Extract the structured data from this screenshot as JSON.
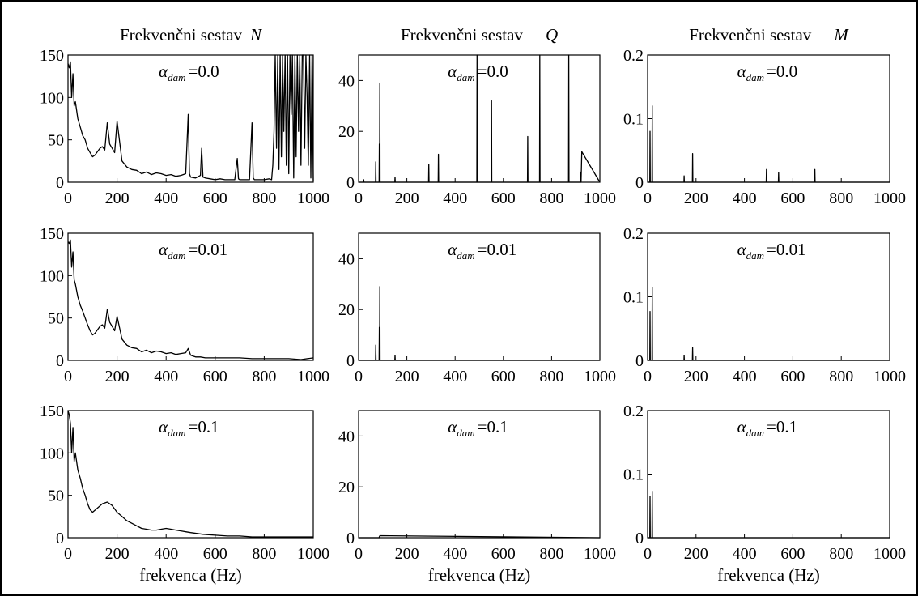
{
  "chart_data": [
    {
      "id": "N-0",
      "type": "line",
      "title": {
        "text": "Frekvenčni sestav",
        "symbol": "N"
      },
      "annotation": {
        "symbol": "α",
        "subscript": "dam",
        "value": "=0.0"
      },
      "xlabel": "",
      "xlim": [
        0,
        1000
      ],
      "ylim": [
        0,
        150
      ],
      "xticks": [
        "0",
        "200",
        "400",
        "600",
        "800",
        "1000"
      ],
      "yticks": [
        "0",
        "50",
        "100",
        "150"
      ],
      "series": [
        {
          "x": [
            0,
            5,
            10,
            15,
            20,
            25,
            30,
            40,
            50,
            60,
            70,
            80,
            90,
            100,
            110,
            120,
            130,
            140,
            150,
            160,
            170,
            180,
            190,
            200,
            220,
            240,
            260,
            280,
            300,
            320,
            340,
            360,
            380,
            400,
            420,
            440,
            460,
            480,
            490,
            495,
            500,
            520,
            540,
            545,
            550,
            560,
            580,
            600,
            620,
            640,
            660,
            680,
            690,
            695,
            700,
            720,
            740,
            750,
            755,
            760,
            780,
            800,
            820,
            830,
            835,
            840,
            845,
            850,
            855,
            860,
            865,
            870,
            875,
            880,
            885,
            890,
            895,
            900,
            905,
            910,
            915,
            920,
            925,
            930,
            935,
            940,
            945,
            950,
            955,
            960,
            965,
            970,
            975,
            980,
            985,
            990,
            995,
            1000
          ],
          "y": [
            140,
            135,
            142,
            100,
            128,
            90,
            95,
            75,
            65,
            55,
            50,
            40,
            35,
            30,
            32,
            36,
            40,
            42,
            38,
            70,
            45,
            40,
            35,
            72,
            25,
            18,
            15,
            14,
            10,
            12,
            9,
            11,
            10,
            8,
            9,
            7,
            8,
            10,
            80,
            10,
            6,
            5,
            8,
            40,
            6,
            5,
            4,
            3,
            4,
            3,
            3,
            3,
            28,
            4,
            3,
            3,
            3,
            70,
            5,
            3,
            3,
            3,
            4,
            3,
            20,
            60,
            150,
            40,
            150,
            15,
            150,
            30,
            150,
            60,
            150,
            20,
            150,
            10,
            150,
            80,
            150,
            5,
            150,
            30,
            150,
            60,
            150,
            20,
            150,
            150,
            40,
            150,
            100,
            20,
            150,
            5,
            150,
            2
          ]
        }
      ]
    },
    {
      "id": "Q-0",
      "type": "line",
      "title": {
        "text": "Frekvenčni sestav",
        "symbol": "Q"
      },
      "annotation": {
        "symbol": "α",
        "subscript": "dam",
        "value": "=0.0"
      },
      "xlabel": "",
      "xlim": [
        0,
        1000
      ],
      "ylim": [
        0,
        50
      ],
      "xticks": [
        "0",
        "200",
        "400",
        "600",
        "800",
        "1000"
      ],
      "yticks": [
        "0",
        "20",
        "40"
      ],
      "series": [
        {
          "x": [
            0,
            20,
            21,
            22,
            25,
            70,
            71,
            72,
            85,
            86,
            87,
            88,
            89,
            90,
            150,
            151,
            152,
            290,
            291,
            292,
            330,
            331,
            332,
            490,
            491,
            492,
            550,
            551,
            552,
            700,
            701,
            702,
            750,
            751,
            752,
            870,
            871,
            872,
            920,
            921,
            922,
            925,
            1000
          ],
          "y": [
            0,
            0,
            1,
            0,
            0,
            0,
            8,
            0,
            0,
            15,
            0,
            39,
            0,
            0,
            0,
            2,
            0,
            0,
            7,
            0,
            0,
            11,
            0,
            0,
            50,
            0,
            0,
            32,
            0,
            0,
            18,
            0,
            0,
            50,
            0,
            0,
            50,
            0,
            0,
            4,
            0,
            12,
            0
          ]
        }
      ]
    },
    {
      "id": "M-0",
      "type": "line",
      "title": {
        "text": "Frekvenčni sestav",
        "symbol": "M"
      },
      "annotation": {
        "symbol": "α",
        "subscript": "dam",
        "value": "=0.0"
      },
      "xlabel": "",
      "xlim": [
        0,
        1000
      ],
      "ylim": [
        0,
        0.2
      ],
      "xticks": [
        "0",
        "200",
        "400",
        "600",
        "800",
        "1000"
      ],
      "yticks": [
        "0",
        "0.1",
        "0.2"
      ],
      "series": [
        {
          "x": [
            0,
            9,
            10,
            11,
            18,
            19,
            20,
            30,
            150,
            151,
            152,
            185,
            186,
            187,
            490,
            491,
            492,
            540,
            541,
            542,
            690,
            691,
            692,
            1000
          ],
          "y": [
            0,
            0,
            0.08,
            0,
            0,
            0.12,
            0,
            0,
            0,
            0.01,
            0,
            0,
            0.045,
            0,
            0,
            0.02,
            0,
            0,
            0.015,
            0,
            0,
            0.02,
            0,
            0
          ]
        }
      ]
    },
    {
      "id": "N-1",
      "type": "line",
      "annotation": {
        "symbol": "α",
        "subscript": "dam",
        "value": "=0.01"
      },
      "xlabel": "",
      "xlim": [
        0,
        1000
      ],
      "ylim": [
        0,
        150
      ],
      "xticks": [
        "0",
        "200",
        "400",
        "600",
        "800",
        "1000"
      ],
      "yticks": [
        "0",
        "50",
        "100",
        "150"
      ],
      "series": [
        {
          "x": [
            0,
            5,
            10,
            15,
            20,
            25,
            30,
            40,
            50,
            60,
            70,
            80,
            90,
            100,
            110,
            120,
            130,
            140,
            150,
            160,
            170,
            180,
            190,
            200,
            220,
            240,
            260,
            280,
            300,
            320,
            340,
            360,
            380,
            400,
            420,
            440,
            460,
            480,
            490,
            500,
            510,
            520,
            540,
            560,
            580,
            600,
            650,
            700,
            750,
            800,
            850,
            900,
            950,
            1000
          ],
          "y": [
            140,
            138,
            142,
            110,
            128,
            95,
            90,
            75,
            65,
            58,
            50,
            42,
            35,
            30,
            32,
            36,
            40,
            42,
            38,
            60,
            45,
            40,
            35,
            52,
            25,
            18,
            15,
            14,
            10,
            12,
            9,
            11,
            10,
            8,
            9,
            7,
            8,
            9,
            14,
            6,
            5,
            4,
            4,
            3,
            3,
            3,
            3,
            3,
            2,
            2,
            2,
            2,
            1,
            3
          ]
        }
      ]
    },
    {
      "id": "Q-1",
      "type": "line",
      "annotation": {
        "symbol": "α",
        "subscript": "dam",
        "value": "=0.01"
      },
      "xlabel": "",
      "xlim": [
        0,
        1000
      ],
      "ylim": [
        0,
        50
      ],
      "xticks": [
        "0",
        "200",
        "400",
        "600",
        "800",
        "1000"
      ],
      "yticks": [
        "0",
        "20",
        "40"
      ],
      "series": [
        {
          "x": [
            0,
            70,
            71,
            72,
            85,
            86,
            87,
            88,
            89,
            90,
            150,
            151,
            152,
            1000
          ],
          "y": [
            0,
            0,
            6,
            0,
            0,
            13,
            0,
            29,
            0,
            0,
            0,
            2,
            0,
            0
          ]
        }
      ]
    },
    {
      "id": "M-1",
      "type": "line",
      "annotation": {
        "symbol": "α",
        "subscript": "dam",
        "value": "=0.01"
      },
      "xlabel": "",
      "xlim": [
        0,
        1000
      ],
      "ylim": [
        0,
        0.2
      ],
      "xticks": [
        "0",
        "200",
        "400",
        "600",
        "800",
        "1000"
      ],
      "yticks": [
        "0",
        "0.1",
        "0.2"
      ],
      "series": [
        {
          "x": [
            0,
            9,
            10,
            11,
            18,
            19,
            20,
            30,
            150,
            151,
            152,
            185,
            186,
            187,
            1000
          ],
          "y": [
            0,
            0,
            0.077,
            0,
            0,
            0.115,
            0,
            0,
            0,
            0.008,
            0,
            0,
            0.02,
            0,
            0
          ]
        }
      ]
    },
    {
      "id": "N-2",
      "type": "line",
      "annotation": {
        "symbol": "α",
        "subscript": "dam",
        "value": "=0.1"
      },
      "xlabel": "frekvenca (Hz)",
      "xlim": [
        0,
        1000
      ],
      "ylim": [
        0,
        150
      ],
      "xticks": [
        "0",
        "200",
        "400",
        "600",
        "800",
        "1000"
      ],
      "yticks": [
        "0",
        "50",
        "100",
        "150"
      ],
      "series": [
        {
          "x": [
            0,
            5,
            10,
            15,
            20,
            25,
            30,
            40,
            50,
            60,
            70,
            80,
            90,
            100,
            120,
            140,
            160,
            180,
            200,
            220,
            240,
            260,
            280,
            300,
            320,
            340,
            360,
            380,
            400,
            420,
            440,
            460,
            480,
            500,
            550,
            600,
            650,
            700,
            750,
            800,
            850,
            900,
            950,
            1000
          ],
          "y": [
            150,
            145,
            135,
            100,
            130,
            90,
            100,
            80,
            70,
            58,
            50,
            40,
            33,
            30,
            35,
            40,
            42,
            38,
            30,
            25,
            20,
            17,
            14,
            11,
            10,
            9,
            9,
            10,
            11,
            10,
            9,
            8,
            7,
            6,
            4,
            3,
            2,
            2,
            1,
            1,
            1,
            1,
            1,
            1
          ]
        }
      ]
    },
    {
      "id": "Q-2",
      "type": "line",
      "annotation": {
        "symbol": "α",
        "subscript": "dam",
        "value": "=0.1"
      },
      "xlabel": "frekvenca (Hz)",
      "xlim": [
        0,
        1000
      ],
      "ylim": [
        0,
        50
      ],
      "xticks": [
        "0",
        "200",
        "400",
        "600",
        "800",
        "1000"
      ],
      "yticks": [
        "0",
        "20",
        "40"
      ],
      "series": [
        {
          "x": [
            0,
            85,
            86,
            87,
            88,
            1000
          ],
          "y": [
            0,
            0,
            0.4,
            0,
            0.8,
            0
          ]
        }
      ]
    },
    {
      "id": "M-2",
      "type": "line",
      "annotation": {
        "symbol": "α",
        "subscript": "dam",
        "value": "=0.1"
      },
      "xlabel": "frekvenca (Hz)",
      "xlim": [
        0,
        1000
      ],
      "ylim": [
        0,
        0.2
      ],
      "xticks": [
        "0",
        "200",
        "400",
        "600",
        "800",
        "1000"
      ],
      "yticks": [
        "0",
        "0.1",
        "0.2"
      ],
      "series": [
        {
          "x": [
            0,
            9,
            10,
            11,
            18,
            19,
            20,
            30,
            1000
          ],
          "y": [
            0,
            0,
            0.065,
            0,
            0,
            0.073,
            0,
            0,
            0
          ]
        }
      ]
    }
  ]
}
